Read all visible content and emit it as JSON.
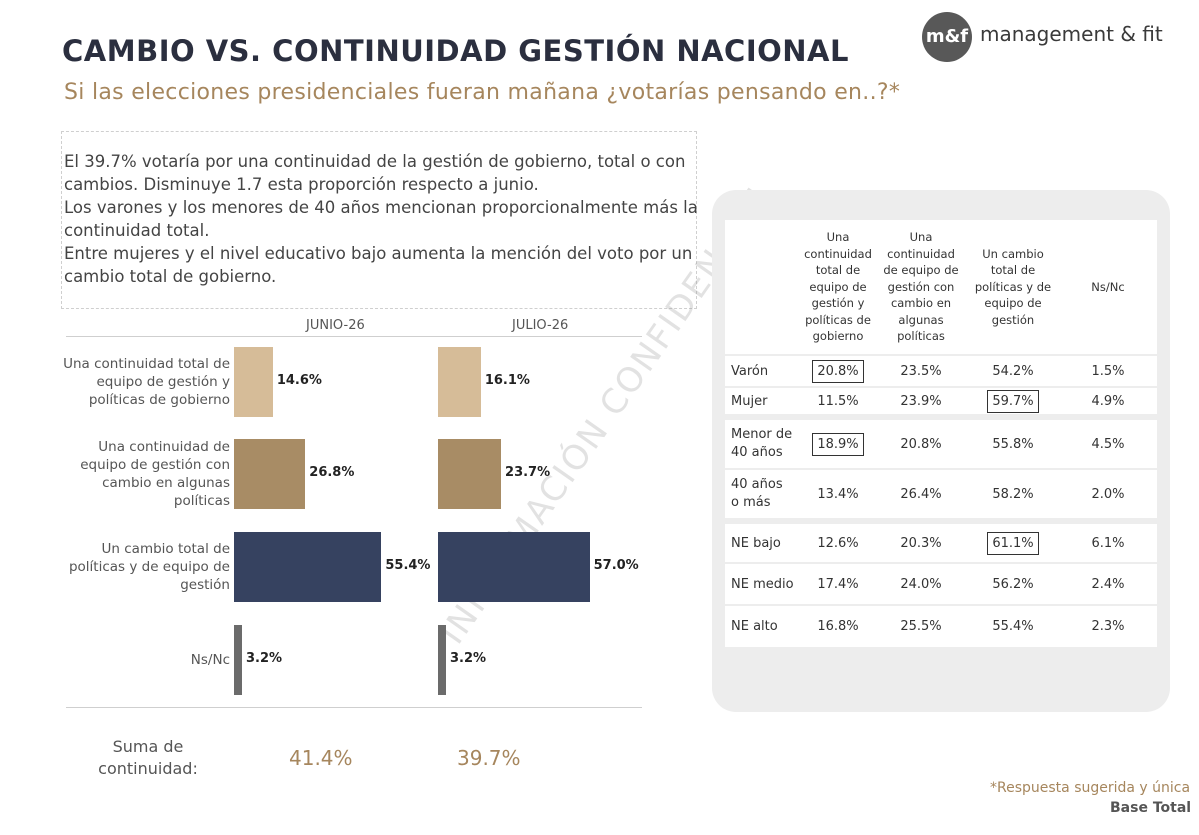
{
  "header": {
    "title": "CAMBIO VS. CONTINUIDAD GESTIÓN NACIONAL",
    "subtitle": "Si las elecciones presidenciales fueran mañana ¿votarías pensando en..?*",
    "logo_mark": "m&f",
    "logo_text": "management & fit"
  },
  "notes": [
    "El 39.7% votaría por una continuidad de la gestión de gobierno, total o con",
    "cambios. Disminuye 1.7 esta proporción respecto a junio.",
    "Los varones y los menores de 40 años mencionan proporcionalmente más la",
    "continuidad total.",
    "Entre mujeres y el nivel educativo bajo aumenta la mención del voto por un",
    "cambio total de gobierno."
  ],
  "watermark": "INFORMACIÓN CONFIDENCIAL",
  "chart_data": {
    "type": "bar",
    "orientation": "horizontal",
    "panels": [
      "JUNIO-26",
      "JULIO-26"
    ],
    "categories": [
      "Una continuidad total de equipo de gestión y políticas de gobierno",
      "Una continuidad de equipo de gestión con cambio en algunas políticas",
      "Un cambio total de políticas y de equipo de gestión",
      "Ns/Nc"
    ],
    "category_lines": [
      [
        "Una continuidad total de",
        "equipo de gestión y",
        "políticas de gobierno"
      ],
      [
        "Una continuidad de",
        "equipo de gestión con",
        "cambio en algunas",
        "políticas"
      ],
      [
        "Un cambio total de",
        "políticas y de equipo de",
        "gestión"
      ],
      [
        "Ns/Nc"
      ]
    ],
    "series": [
      {
        "name": "JUNIO-26",
        "values": [
          14.6,
          26.8,
          55.4,
          3.2
        ],
        "labels": [
          "14.6%",
          "26.8%",
          "55.4%",
          "3.2%"
        ]
      },
      {
        "name": "JULIO-26",
        "values": [
          16.1,
          23.7,
          57.0,
          3.2
        ],
        "labels": [
          "16.1%",
          "23.7%",
          "57.0%",
          "3.2%"
        ]
      }
    ],
    "colors": [
      "#d6bc98",
      "#a88c65",
      "#364260",
      "#6b6b6b"
    ],
    "summary": {
      "label": "Suma de continuidad:",
      "values": [
        "41.4%",
        "39.7%"
      ]
    }
  },
  "table": {
    "columns": [
      "Una continuidad total de equipo de gestión y políticas de gobierno",
      "Una continuidad de equipo de gestión con cambio en algunas políticas",
      "Un cambio total de políticas y de equipo de gestión",
      "Ns/Nc"
    ],
    "column_lines": [
      [
        "Una",
        "continuidad",
        "total de",
        "equipo de",
        "gestión y",
        "políticas de",
        "gobierno"
      ],
      [
        "Una",
        "continuidad",
        "de equipo de",
        "gestión con",
        "cambio en",
        "algunas",
        "políticas"
      ],
      [
        "Un cambio",
        "total de",
        "políticas y de",
        "equipo de",
        "gestión"
      ],
      [
        "Ns/Nc"
      ]
    ],
    "rows": [
      {
        "label": "Varón",
        "values": [
          "20.8%",
          "23.5%",
          "54.2%",
          "1.5%"
        ],
        "highlight": 0
      },
      {
        "label": "Mujer",
        "values": [
          "11.5%",
          "23.9%",
          "59.7%",
          "4.9%"
        ],
        "highlight": 2
      },
      {
        "label": "Menor de 40 años",
        "values": [
          "18.9%",
          "20.8%",
          "55.8%",
          "4.5%"
        ],
        "highlight": 0
      },
      {
        "label": "40 años o más",
        "values": [
          "13.4%",
          "26.4%",
          "58.2%",
          "2.0%"
        ],
        "highlight": -1
      },
      {
        "label": "NE bajo",
        "values": [
          "12.6%",
          "20.3%",
          "61.1%",
          "6.1%"
        ],
        "highlight": 2
      },
      {
        "label": "NE medio",
        "values": [
          "17.4%",
          "24.0%",
          "56.2%",
          "2.4%"
        ],
        "highlight": -1
      },
      {
        "label": "NE alto",
        "values": [
          "16.8%",
          "25.5%",
          "55.4%",
          "2.3%"
        ],
        "highlight": -1
      }
    ]
  },
  "footer": {
    "note": "*Respuesta sugerida y única",
    "base": "Base Total"
  }
}
